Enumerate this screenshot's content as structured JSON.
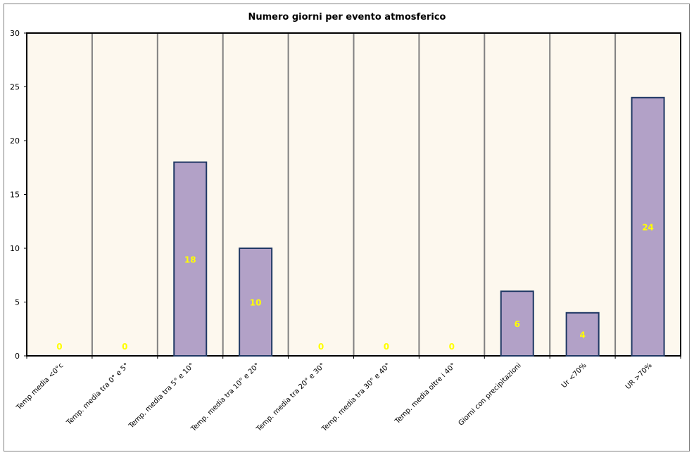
{
  "chart_data": {
    "type": "bar",
    "title": "Numero giorni per evento atmosferico",
    "xlabel": "",
    "ylabel": "",
    "ylim": [
      0,
      30
    ],
    "yticks": [
      0,
      5,
      10,
      15,
      20,
      25,
      30
    ],
    "grid": "vertical separators between categories",
    "legend": "none",
    "categories": [
      "Temp media <0°c",
      "Temp. media tra 0° e 5°",
      "Temp. media tra 5° e 10°",
      "Temp. media tra 10° e 20°",
      "Temp. media tra 20° e 30°",
      "Temp. media tra 30° e 40°",
      "Temp. media oltre i 40°",
      "Giorni con precipitazioni",
      "Ur <70%",
      "UR >70%"
    ],
    "values": [
      0,
      0,
      18,
      10,
      0,
      0,
      0,
      6,
      4,
      24
    ],
    "colors": {
      "bar_fill": "#b2a1c7",
      "bar_stroke": "#1f3864",
      "plot_bg": "#fdf8ee",
      "grid": "#808080",
      "data_label": "#ffff00"
    }
  }
}
